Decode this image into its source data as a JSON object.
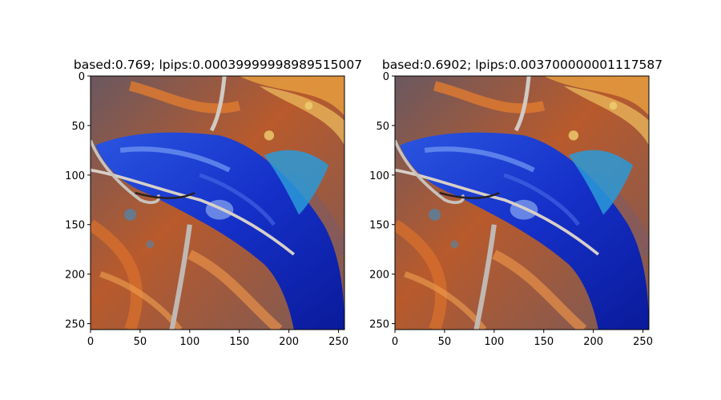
{
  "chart_data": [
    {
      "type": "image",
      "title": "based:0.769; lpips:0.00039999998989515007",
      "xlim": [
        0,
        256
      ],
      "ylim": [
        256,
        0
      ],
      "xticks": [
        0,
        50,
        100,
        150,
        200,
        250
      ],
      "yticks": [
        0,
        50,
        100,
        150,
        200,
        250
      ],
      "image_description": "blue fish on orange-brown patterned background with fishing hooks"
    },
    {
      "type": "image",
      "title": "based:0.6902; lpips:0.003700000001117587",
      "xlim": [
        0,
        256
      ],
      "ylim": [
        256,
        0
      ],
      "xticks": [
        0,
        50,
        100,
        150,
        200,
        250
      ],
      "yticks": [
        0,
        50,
        100,
        150,
        200,
        250
      ],
      "image_description": "blue fish on orange-brown patterned background with fishing hooks"
    }
  ],
  "colors": {
    "bg_dark": "#5a4a52",
    "orange": "#c8602a",
    "orange_light": "#e08a40",
    "blue": "#1a2fd0",
    "blue_dark": "#0a1890",
    "cyan": "#2aa0d8",
    "hook": "#c8c2bc"
  }
}
